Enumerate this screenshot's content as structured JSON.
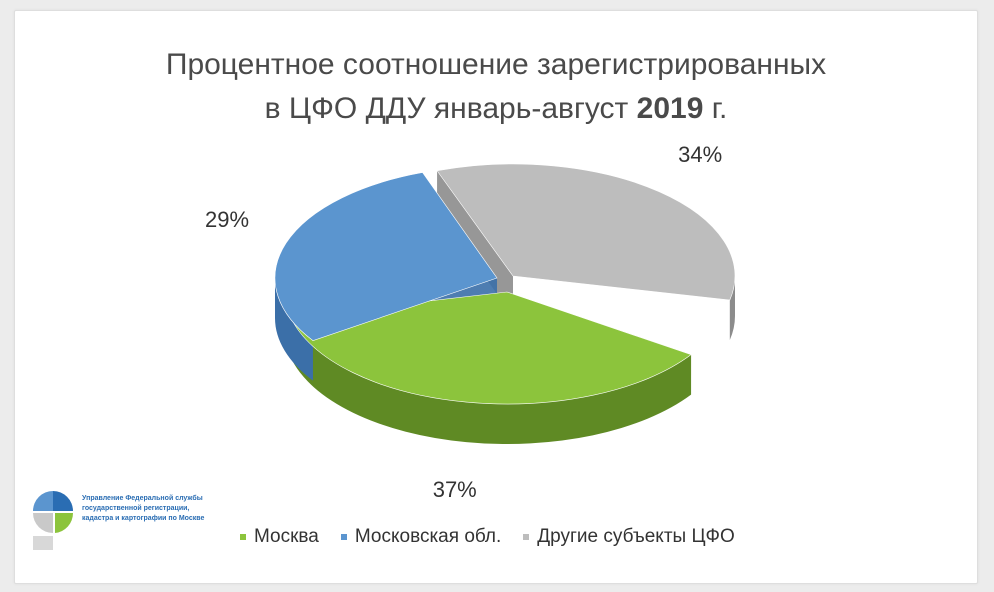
{
  "title": {
    "line1": "Процентное соотношение зарегистрированных",
    "line2_prefix": "в ЦФО ДДУ январь-август",
    "line2_year": "2019",
    "line2_suffix": "г."
  },
  "chart_data": {
    "type": "pie",
    "style": "3d-tilted",
    "series": [
      {
        "name": "Москва",
        "value": 37,
        "label": "37%",
        "color": "#8cc43c",
        "side": "#5f8a24"
      },
      {
        "name": "Московская обл.",
        "value": 29,
        "label": "29%",
        "color": "#5b95cf",
        "side": "#3b6fa8"
      },
      {
        "name": "Другие субъекты ЦФО",
        "value": 34,
        "label": "34%",
        "color": "#bdbdbd",
        "side": "#8c8c8c"
      }
    ],
    "legend_position": "bottom"
  },
  "logo": {
    "text": "Управление Федеральной службы государственной регистрации, кадастра и картографии по Москве",
    "colors": [
      "#2a6db3",
      "#5b95cf",
      "#8cc43c",
      "#c9c9c9"
    ]
  }
}
